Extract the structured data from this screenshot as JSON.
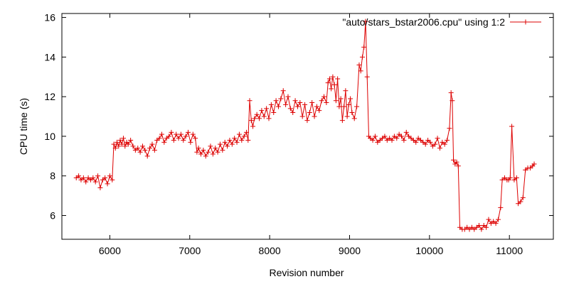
{
  "chart_data": {
    "type": "line",
    "title": "",
    "xlabel": "Revision number",
    "ylabel": "CPU time (s)",
    "xlim": [
      5400,
      11550
    ],
    "ylim": [
      4.8,
      16.2
    ],
    "xticks": [
      6000,
      7000,
      8000,
      9000,
      10000,
      11000
    ],
    "xtick_labels": [
      "6000",
      "7000",
      "8000",
      "9000",
      "10000",
      "11000"
    ],
    "yticks": [
      6,
      8,
      10,
      12,
      14,
      16
    ],
    "ytick_labels": [
      "6",
      "8",
      "10",
      "12",
      "14",
      "16"
    ],
    "legend_position": "top-right",
    "grid": false,
    "marker": "plus",
    "series": [
      {
        "name": "\"auto/stars_bstar2006.cpu\" using 1:2",
        "color": "#dd0000",
        "x": [
          5580,
          5610,
          5640,
          5670,
          5700,
          5730,
          5760,
          5790,
          5820,
          5850,
          5880,
          5910,
          5940,
          5970,
          6000,
          6030,
          6050,
          6070,
          6090,
          6110,
          6130,
          6150,
          6170,
          6190,
          6210,
          6230,
          6260,
          6290,
          6320,
          6350,
          6380,
          6410,
          6440,
          6470,
          6500,
          6530,
          6560,
          6590,
          6620,
          6650,
          6680,
          6710,
          6740,
          6770,
          6800,
          6830,
          6860,
          6890,
          6920,
          6950,
          6980,
          7010,
          7040,
          7070,
          7090,
          7110,
          7140,
          7170,
          7200,
          7230,
          7260,
          7290,
          7320,
          7350,
          7380,
          7410,
          7440,
          7470,
          7500,
          7530,
          7560,
          7590,
          7620,
          7650,
          7680,
          7710,
          7730,
          7750,
          7770,
          7790,
          7810,
          7840,
          7870,
          7900,
          7930,
          7960,
          7990,
          8020,
          8050,
          8080,
          8110,
          8140,
          8170,
          8200,
          8230,
          8260,
          8290,
          8320,
          8350,
          8380,
          8410,
          8440,
          8470,
          8500,
          8530,
          8560,
          8590,
          8620,
          8650,
          8680,
          8710,
          8730,
          8750,
          8770,
          8790,
          8810,
          8830,
          8850,
          8870,
          8890,
          8910,
          8930,
          8950,
          8970,
          8990,
          9010,
          9030,
          9060,
          9090,
          9120,
          9140,
          9160,
          9180,
          9200,
          9220,
          9240,
          9260,
          9290,
          9320,
          9350,
          9380,
          9410,
          9440,
          9470,
          9500,
          9530,
          9560,
          9590,
          9620,
          9650,
          9680,
          9710,
          9740,
          9770,
          9800,
          9830,
          9860,
          9890,
          9920,
          9950,
          9980,
          10010,
          10040,
          10070,
          10100,
          10130,
          10160,
          10190,
          10220,
          10250,
          10270,
          10285,
          10300,
          10320,
          10340,
          10360,
          10380,
          10410,
          10440,
          10470,
          10500,
          10530,
          10560,
          10590,
          10620,
          10650,
          10680,
          10710,
          10740,
          10770,
          10800,
          10830,
          10860,
          10890,
          10910,
          10940,
          10970,
          10990,
          11010,
          11030,
          11060,
          11090,
          11110,
          11140,
          11170,
          11200,
          11230,
          11260,
          11290,
          11310
        ],
        "y": [
          7.9,
          8.0,
          7.8,
          7.9,
          7.7,
          7.9,
          7.8,
          7.9,
          7.7,
          8.0,
          7.4,
          7.8,
          7.9,
          7.6,
          8.0,
          7.8,
          9.6,
          9.4,
          9.7,
          9.5,
          9.8,
          9.6,
          9.9,
          9.5,
          9.7,
          9.6,
          9.8,
          9.5,
          9.3,
          9.4,
          9.2,
          9.5,
          9.3,
          9.0,
          9.4,
          9.6,
          9.3,
          9.8,
          9.9,
          10.1,
          9.7,
          9.9,
          10.0,
          10.2,
          9.8,
          10.1,
          9.9,
          10.1,
          9.8,
          10.0,
          10.2,
          9.7,
          10.1,
          9.9,
          9.2,
          9.4,
          9.1,
          9.3,
          9.0,
          9.2,
          9.5,
          9.1,
          9.4,
          9.2,
          9.6,
          9.3,
          9.7,
          9.5,
          9.8,
          9.6,
          9.9,
          9.7,
          10.1,
          9.8,
          10.0,
          10.2,
          9.8,
          11.8,
          10.8,
          10.5,
          10.9,
          11.1,
          10.9,
          11.3,
          11.0,
          11.4,
          10.9,
          11.6,
          11.2,
          11.8,
          11.5,
          11.9,
          12.3,
          11.6,
          12.0,
          11.4,
          11.2,
          11.8,
          11.5,
          11.7,
          11.0,
          11.6,
          10.8,
          11.2,
          11.7,
          11.0,
          11.5,
          11.3,
          11.8,
          12.0,
          11.7,
          12.7,
          12.9,
          12.4,
          13.0,
          12.6,
          11.8,
          12.9,
          11.5,
          11.9,
          10.8,
          11.5,
          12.3,
          11.0,
          11.6,
          11.9,
          11.2,
          10.9,
          11.5,
          13.6,
          13.3,
          14.0,
          14.5,
          15.8,
          13.0,
          10.0,
          9.9,
          9.8,
          10.0,
          9.7,
          9.8,
          9.9,
          10.0,
          9.8,
          9.9,
          9.8,
          10.0,
          9.9,
          10.1,
          10.0,
          9.8,
          10.2,
          10.0,
          9.9,
          9.8,
          9.7,
          9.9,
          9.8,
          9.7,
          9.6,
          9.8,
          9.7,
          9.5,
          9.6,
          9.9,
          9.4,
          9.7,
          9.6,
          9.8,
          10.4,
          12.2,
          11.8,
          8.8,
          8.6,
          8.7,
          8.5,
          5.4,
          5.3,
          5.3,
          5.4,
          5.3,
          5.4,
          5.3,
          5.4,
          5.5,
          5.3,
          5.5,
          5.4,
          5.8,
          5.6,
          5.7,
          5.6,
          5.8,
          6.4,
          7.8,
          7.9,
          7.8,
          7.8,
          7.9,
          10.5,
          7.8,
          7.9,
          6.6,
          6.7,
          6.9,
          8.3,
          8.4,
          8.4,
          8.5,
          8.6
        ]
      }
    ]
  }
}
